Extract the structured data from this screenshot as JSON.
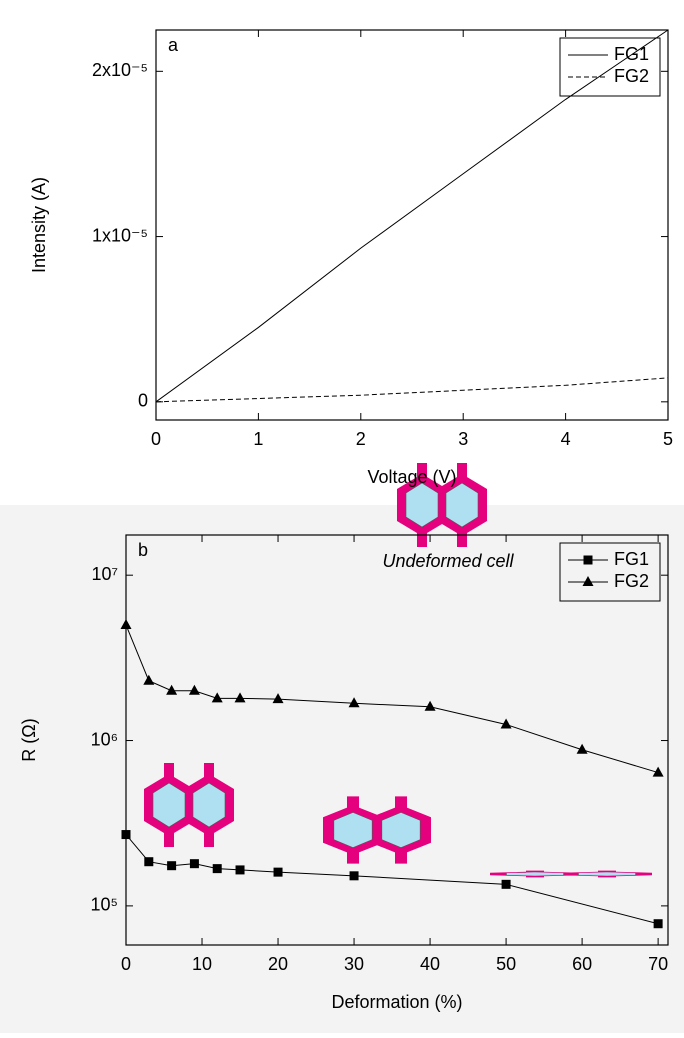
{
  "chart_data": [
    {
      "type": "line",
      "panel_label": "a",
      "xlabel": "Voltage (V)",
      "ylabel": "Intensity (A)",
      "xlim": [
        0,
        5
      ],
      "xticks": [
        0,
        1,
        2,
        3,
        4,
        5
      ],
      "ylim": [
        -1.1e-06,
        2.25e-05
      ],
      "yticks": [
        0,
        {
          "value": 1e-05,
          "label": "1x10⁻⁵"
        },
        {
          "value": 2e-05,
          "label": "2x10⁻⁵"
        }
      ],
      "legend": "upper right",
      "series": [
        {
          "name": "FG1",
          "color": "#000000",
          "line_style": "solid",
          "x": [
            0,
            1,
            2,
            3,
            4,
            5
          ],
          "values": [
            0,
            4.5e-06,
            9.3e-06,
            1.38e-05,
            1.83e-05,
            2.25e-05
          ]
        },
        {
          "name": "FG2",
          "color": "#000000",
          "line_style": "dashed",
          "x": [
            0,
            1,
            2,
            3,
            4,
            5
          ],
          "values": [
            0,
            2e-07,
            4e-07,
            7e-07,
            1e-06,
            1.45e-06
          ]
        }
      ]
    },
    {
      "type": "line",
      "panel_label": "b",
      "xlabel": "Deformation (%)",
      "ylabel": "R (Ω)",
      "annotations": [
        "Undeformed cell"
      ],
      "xlim": [
        0,
        71.3
      ],
      "xticks": [
        0,
        10,
        20,
        30,
        40,
        50,
        60,
        70
      ],
      "ylim": [
        58000,
        17500000
      ],
      "log_y": true,
      "yticks": [
        {
          "value": 100000,
          "label": "10⁵"
        },
        {
          "value": 1000000,
          "label": "10⁶"
        },
        {
          "value": 10000000,
          "label": "10⁷"
        }
      ],
      "legend": "upper right",
      "series": [
        {
          "name": "FG1",
          "color": "#000000",
          "marker": "square",
          "line_style": "solid",
          "x": [
            0,
            3,
            6,
            9,
            12,
            15,
            20,
            30,
            50,
            70
          ],
          "values": [
            270000,
            185000,
            175000,
            180000,
            168000,
            165000,
            160000,
            152000,
            135000,
            78000
          ]
        },
        {
          "name": "FG2",
          "color": "#000000",
          "marker": "triangle",
          "line_style": "solid",
          "x": [
            0,
            3,
            6,
            9,
            12,
            15,
            20,
            30,
            40,
            50,
            60,
            70
          ],
          "values": [
            5000000,
            2300000,
            2000000,
            2000000,
            1800000,
            1800000,
            1780000,
            1680000,
            1600000,
            1250000,
            880000,
            640000
          ]
        }
      ]
    }
  ]
}
